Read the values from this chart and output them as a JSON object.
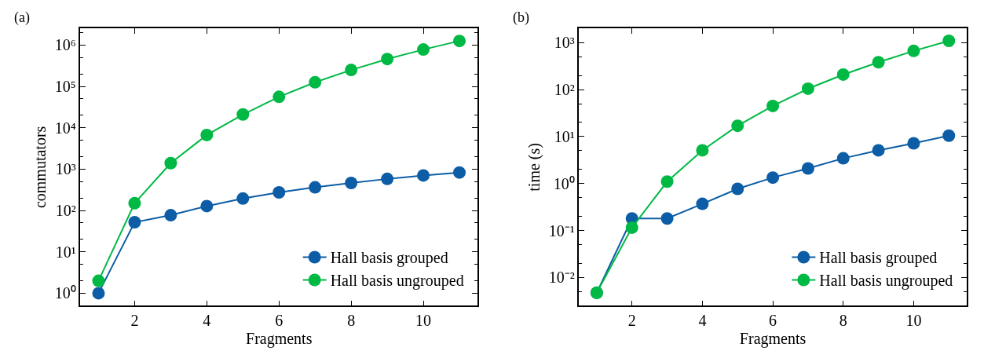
{
  "chart_data": [
    {
      "type": "line",
      "title": "(a)",
      "xlabel": "Fragments",
      "ylabel": "commutators",
      "log": "y",
      "marker": "circle",
      "line_style": "solid",
      "legend": "bottom right",
      "x": [
        1,
        2,
        3,
        4,
        5,
        6,
        7,
        8,
        9,
        10,
        11
      ],
      "xlim": [
        0.5,
        11.5
      ],
      "xticks": [
        2,
        4,
        6,
        8,
        10
      ],
      "ylim": [
        0.5,
        2500000
      ],
      "yticks": [
        {
          "value": 1,
          "label": "10⁰"
        },
        {
          "value": 10,
          "label": "10¹"
        },
        {
          "value": 100,
          "label": "10²"
        },
        {
          "value": 1000,
          "label": "10³"
        },
        {
          "value": 10000,
          "label": "10⁴"
        },
        {
          "value": 100000,
          "label": "10⁵"
        },
        {
          "value": 1000000,
          "label": "10⁶"
        }
      ],
      "series": [
        {
          "name": "Hall basis grouped",
          "color": "#0c5da5",
          "values": [
            1,
            52,
            77,
            128,
            195,
            274,
            363,
            464,
            580,
            705,
            830
          ]
        },
        {
          "name": "Hall basis ungrouped",
          "color": "#00b945",
          "values": [
            2,
            150,
            1400,
            6700,
            21000,
            56000,
            126000,
            250000,
            460000,
            780000,
            1260000
          ]
        }
      ]
    },
    {
      "type": "line",
      "title": "(b)",
      "xlabel": "Fragments",
      "ylabel": "time (s)",
      "log": "y",
      "marker": "circle",
      "line_style": "solid",
      "legend": "bottom right",
      "x": [
        1,
        2,
        3,
        4,
        5,
        6,
        7,
        8,
        9,
        10,
        11
      ],
      "xlim": [
        0.5,
        11.5
      ],
      "xticks": [
        2,
        4,
        6,
        8,
        10
      ],
      "ylim": [
        0.0025,
        2000
      ],
      "yticks": [
        {
          "value": 0.01,
          "label": "10⁻²"
        },
        {
          "value": 0.1,
          "label": "10⁻¹"
        },
        {
          "value": 1,
          "label": "10⁰"
        },
        {
          "value": 10,
          "label": "10¹"
        },
        {
          "value": 100,
          "label": "10²"
        },
        {
          "value": 1000,
          "label": "10³"
        }
      ],
      "series": [
        {
          "name": "Hall basis grouped",
          "color": "#0c5da5",
          "values": [
            0.0047,
            0.18,
            0.18,
            0.37,
            0.77,
            1.34,
            2.1,
            3.45,
            5.1,
            7.2,
            10.5
          ]
        },
        {
          "name": "Hall basis ungrouped",
          "color": "#00b945",
          "values": [
            0.0047,
            0.115,
            1.1,
            5.1,
            17,
            45,
            105,
            210,
            385,
            670,
            1100
          ]
        }
      ]
    }
  ]
}
